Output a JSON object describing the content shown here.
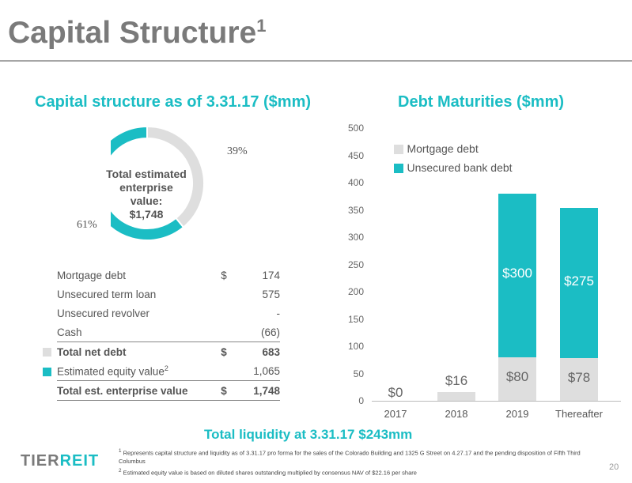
{
  "header": {
    "title": "Capital Structure",
    "title_footnote": "1"
  },
  "left": {
    "title": "Capital structure as of 3.31.17 ($mm)",
    "donut": {
      "center_line1": "Total estimated",
      "center_line2": "enterprise value:",
      "center_line3": "$1,748",
      "slices": [
        {
          "label": "39%",
          "value": 39,
          "color": "#dedede"
        },
        {
          "label": "61%",
          "value": 61,
          "color": "#1bbdc4"
        }
      ]
    },
    "table": {
      "rows": [
        {
          "label": "Mortgage debt",
          "currency": "$",
          "value": "174"
        },
        {
          "label": "Unsecured term loan",
          "currency": "",
          "value": "575"
        },
        {
          "label": "Unsecured revolver",
          "currency": "",
          "value": "-"
        },
        {
          "label": "Cash",
          "currency": "",
          "value": "(66)"
        },
        {
          "label": "Total net debt",
          "currency": "$",
          "value": "683"
        },
        {
          "label": "Estimated equity value",
          "sup": "2",
          "currency": "",
          "value": "1,065"
        },
        {
          "label": "Total est. enterprise value",
          "currency": "$",
          "value": "1,748"
        }
      ]
    }
  },
  "right": {
    "title": "Debt Maturities ($mm)",
    "legend": {
      "mortgage": "Mortgage debt",
      "unsecured": "Unsecured bank debt"
    }
  },
  "chart_data": {
    "type": "bar",
    "stacked": true,
    "categories": [
      "2017",
      "2018",
      "2019",
      "Thereafter"
    ],
    "series": [
      {
        "name": "Mortgage debt",
        "values": [
          0,
          16,
          80,
          78
        ],
        "labels": [
          "$0",
          "$16",
          "$80",
          "$78"
        ],
        "color": "#dedede"
      },
      {
        "name": "Unsecured bank debt",
        "values": [
          0,
          0,
          300,
          275
        ],
        "labels": [
          "",
          "",
          "$300",
          "$275"
        ],
        "color": "#1bbdc4"
      }
    ],
    "ylim": [
      0,
      500
    ],
    "yticks": [
      0,
      50,
      100,
      150,
      200,
      250,
      300,
      350,
      400,
      450,
      500
    ],
    "grid": false,
    "legend_position": "top-left"
  },
  "liquidity": "Total liquidity at 3.31.17 $243mm",
  "footnotes": {
    "f1_num": "1",
    "f1": "Represents capital structure and liquidity as of 3.31.17 pro forma for the sales of the Colorado Building and 1325 G Street on 4.27.17 and the pending disposition of Fifth Third Columbus",
    "f2_num": "2",
    "f2": "Estimated equity value is based on diluted shares outstanding multiplied by consensus NAV of $22.16 per share"
  },
  "logo": {
    "part1": "TIER",
    "part2": "REIT",
    "color1": "#7a7a7a",
    "color2": "#1bbdc4"
  },
  "page_number": "20"
}
